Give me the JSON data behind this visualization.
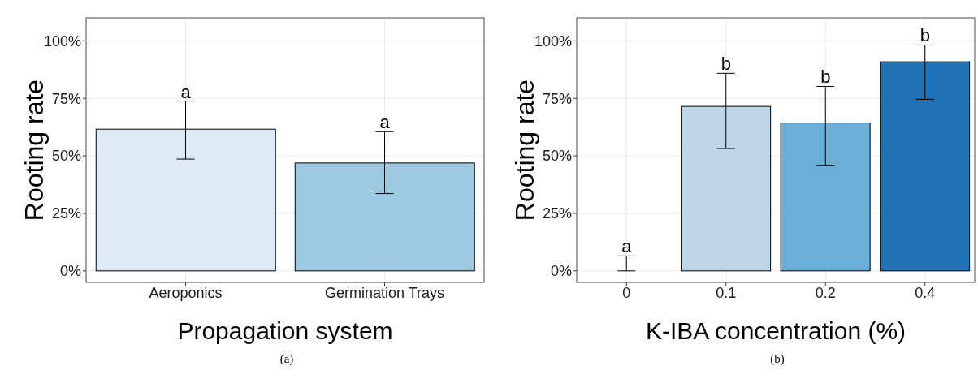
{
  "chart_data": [
    {
      "type": "bar",
      "xlabel": "Propagation system",
      "ylabel": "Rooting rate",
      "categories": [
        "Aeroponics",
        "Germination Trays"
      ],
      "values": [
        61.6,
        46.9
      ],
      "colors": [
        "#deebf7",
        "#9ecae1"
      ],
      "errors": [
        [
          48.6,
          73.8
        ],
        [
          33.6,
          60.5
        ]
      ],
      "ylim": [
        -5,
        110
      ],
      "yticks": [
        {
          "value": 0,
          "label": "0%"
        },
        {
          "value": 25,
          "label": "25%"
        },
        {
          "value": 50,
          "label": "50%"
        },
        {
          "value": 75,
          "label": "75%"
        },
        {
          "value": 100,
          "label": "100%"
        }
      ],
      "grid": true,
      "annotations": [
        {
          "text": "a",
          "x": "Aeroponics",
          "y": 73.8
        },
        {
          "text": "a",
          "x": "Germination Trays",
          "y": 60.5
        },
        "(a)"
      ]
    },
    {
      "type": "bar",
      "xlabel": "K-IBA concentration (%)",
      "ylabel": "Rooting rate",
      "categories": [
        "0",
        "0.1",
        "0.2",
        "0.4"
      ],
      "values": [
        0,
        71.5,
        64.3,
        90.9
      ],
      "colors": [
        "#eff3ff",
        "#bdd7e7",
        "#6baed6",
        "#2171b5"
      ],
      "errors": [
        [
          0,
          6.5
        ],
        [
          53.2,
          85.9
        ],
        [
          45.9,
          80.2
        ],
        [
          74.6,
          98.2
        ]
      ],
      "ylim": [
        -5,
        110
      ],
      "yticks": [
        {
          "value": 0,
          "label": "0%"
        },
        {
          "value": 25,
          "label": "25%"
        },
        {
          "value": 50,
          "label": "50%"
        },
        {
          "value": 75,
          "label": "75%"
        },
        {
          "value": 100,
          "label": "100%"
        }
      ],
      "grid": true,
      "annotations": [
        {
          "text": "a",
          "x": "0",
          "y": 6.5
        },
        {
          "text": "b",
          "x": "0.1",
          "y": 85.9
        },
        {
          "text": "b",
          "x": "0.2",
          "y": 80.2
        },
        {
          "text": "b",
          "x": "0.4",
          "y": 98.2
        },
        "(b)"
      ]
    }
  ]
}
